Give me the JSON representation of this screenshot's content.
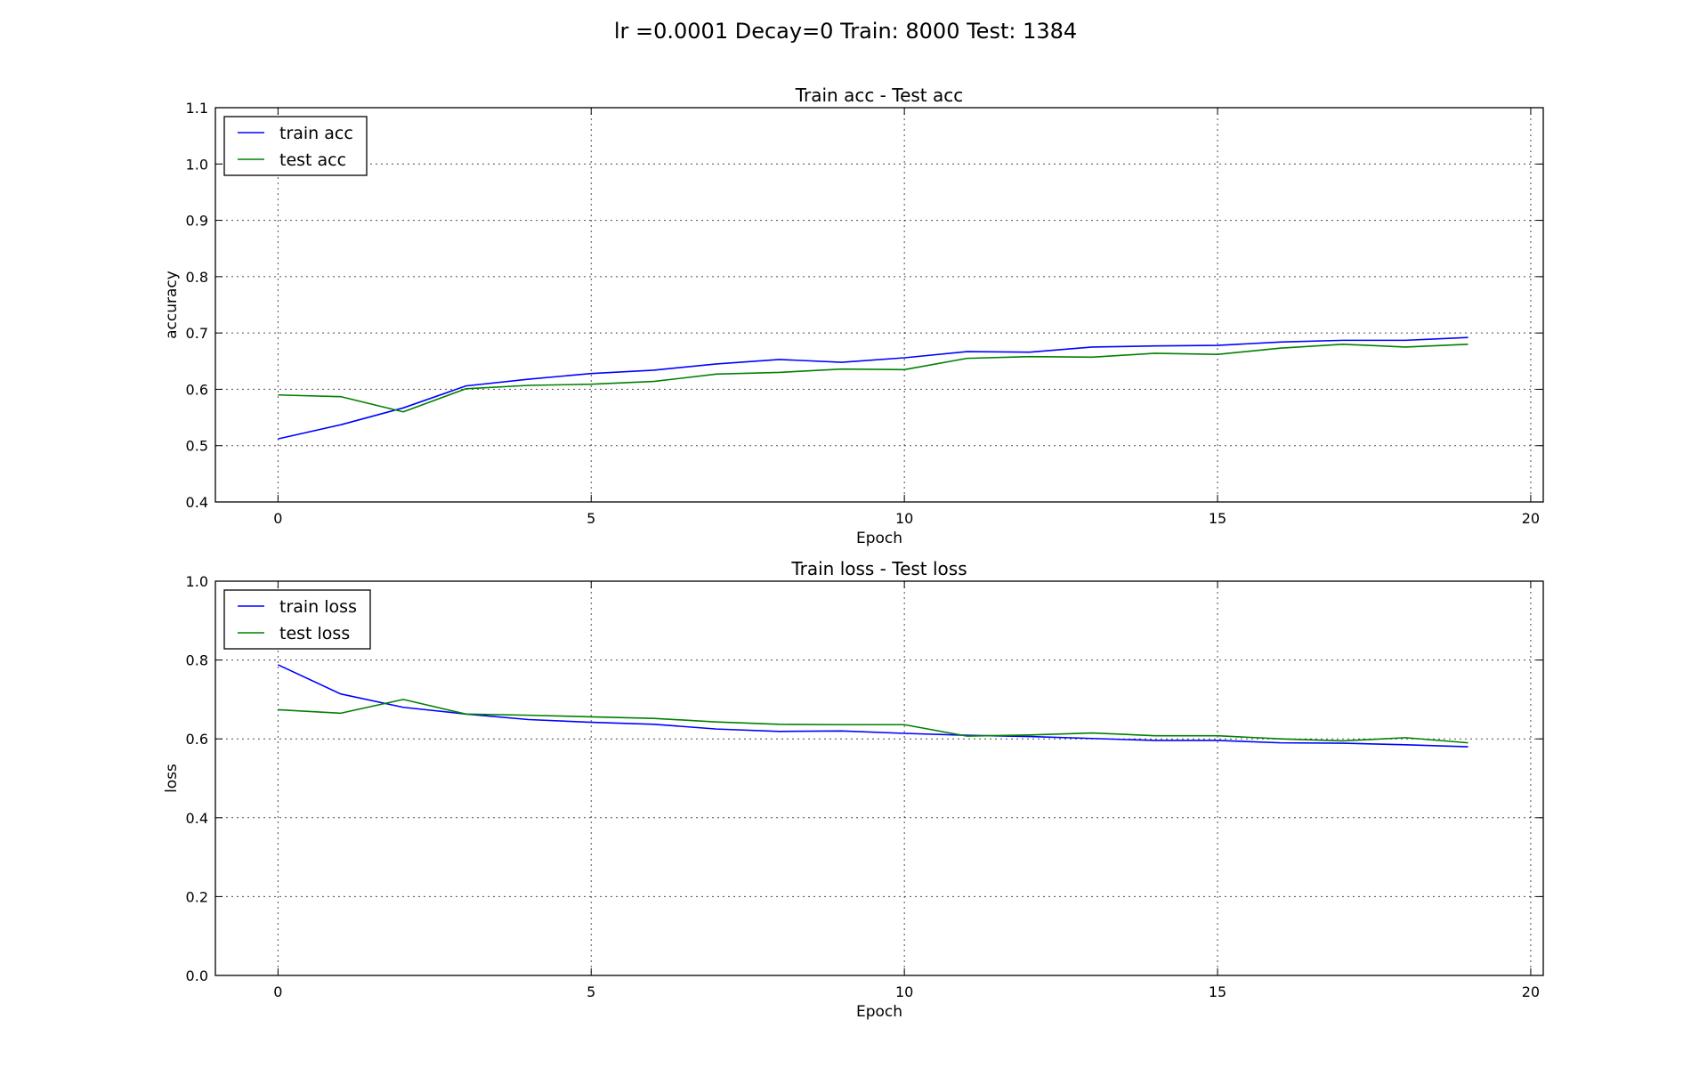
{
  "figure": {
    "suptitle": "lr =0.0001 Decay=0 Train: 8000  Test: 1384"
  },
  "chart_data": [
    {
      "type": "line",
      "title": "Train acc - Test acc",
      "xlabel": "Epoch",
      "ylabel": "accuracy",
      "xlim": [
        -1,
        20.2
      ],
      "ylim": [
        0.4,
        1.1
      ],
      "xticks": [
        0,
        5,
        10,
        15,
        20
      ],
      "xtick_labels": [
        "0",
        "5",
        "10",
        "15",
        "20"
      ],
      "yticks": [
        0.4,
        0.5,
        0.6,
        0.7,
        0.8,
        0.9,
        1.0,
        1.1
      ],
      "ytick_labels": [
        "0.4",
        "0.5",
        "0.6",
        "0.7",
        "0.8",
        "0.9",
        "1.0",
        "1.1"
      ],
      "grid": true,
      "legend_position": "top-left",
      "x": [
        0,
        1,
        2,
        3,
        4,
        5,
        6,
        7,
        8,
        9,
        10,
        11,
        12,
        13,
        14,
        15,
        16,
        17,
        18,
        19
      ],
      "series": [
        {
          "name": "train acc",
          "color": "#0000ff",
          "values": [
            0.512,
            0.537,
            0.567,
            0.606,
            0.618,
            0.628,
            0.634,
            0.645,
            0.653,
            0.648,
            0.656,
            0.667,
            0.666,
            0.675,
            0.677,
            0.678,
            0.684,
            0.687,
            0.687,
            0.692
          ]
        },
        {
          "name": "test acc",
          "color": "#008000",
          "values": [
            0.59,
            0.587,
            0.56,
            0.601,
            0.607,
            0.609,
            0.614,
            0.627,
            0.63,
            0.636,
            0.635,
            0.655,
            0.658,
            0.657,
            0.664,
            0.662,
            0.673,
            0.68,
            0.675,
            0.68
          ]
        }
      ]
    },
    {
      "type": "line",
      "title": "Train loss - Test loss",
      "xlabel": "Epoch",
      "ylabel": "loss",
      "xlim": [
        -1,
        20.2
      ],
      "ylim": [
        0.0,
        1.0
      ],
      "xticks": [
        0,
        5,
        10,
        15,
        20
      ],
      "xtick_labels": [
        "0",
        "5",
        "10",
        "15",
        "20"
      ],
      "yticks": [
        0.0,
        0.2,
        0.4,
        0.6,
        0.8,
        1.0
      ],
      "ytick_labels": [
        "0.0",
        "0.2",
        "0.4",
        "0.6",
        "0.8",
        "1.0"
      ],
      "grid": true,
      "legend_position": "top-left",
      "x": [
        0,
        1,
        2,
        3,
        4,
        5,
        6,
        7,
        8,
        9,
        10,
        11,
        12,
        13,
        14,
        15,
        16,
        17,
        18,
        19
      ],
      "series": [
        {
          "name": "train loss",
          "color": "#0000ff",
          "values": [
            0.788,
            0.714,
            0.68,
            0.663,
            0.649,
            0.642,
            0.637,
            0.625,
            0.619,
            0.62,
            0.614,
            0.609,
            0.606,
            0.601,
            0.596,
            0.596,
            0.59,
            0.589,
            0.585,
            0.58
          ]
        },
        {
          "name": "test loss",
          "color": "#008000",
          "values": [
            0.674,
            0.665,
            0.7,
            0.663,
            0.66,
            0.656,
            0.652,
            0.643,
            0.637,
            0.636,
            0.636,
            0.607,
            0.61,
            0.615,
            0.608,
            0.608,
            0.6,
            0.595,
            0.603,
            0.59
          ]
        }
      ]
    }
  ]
}
